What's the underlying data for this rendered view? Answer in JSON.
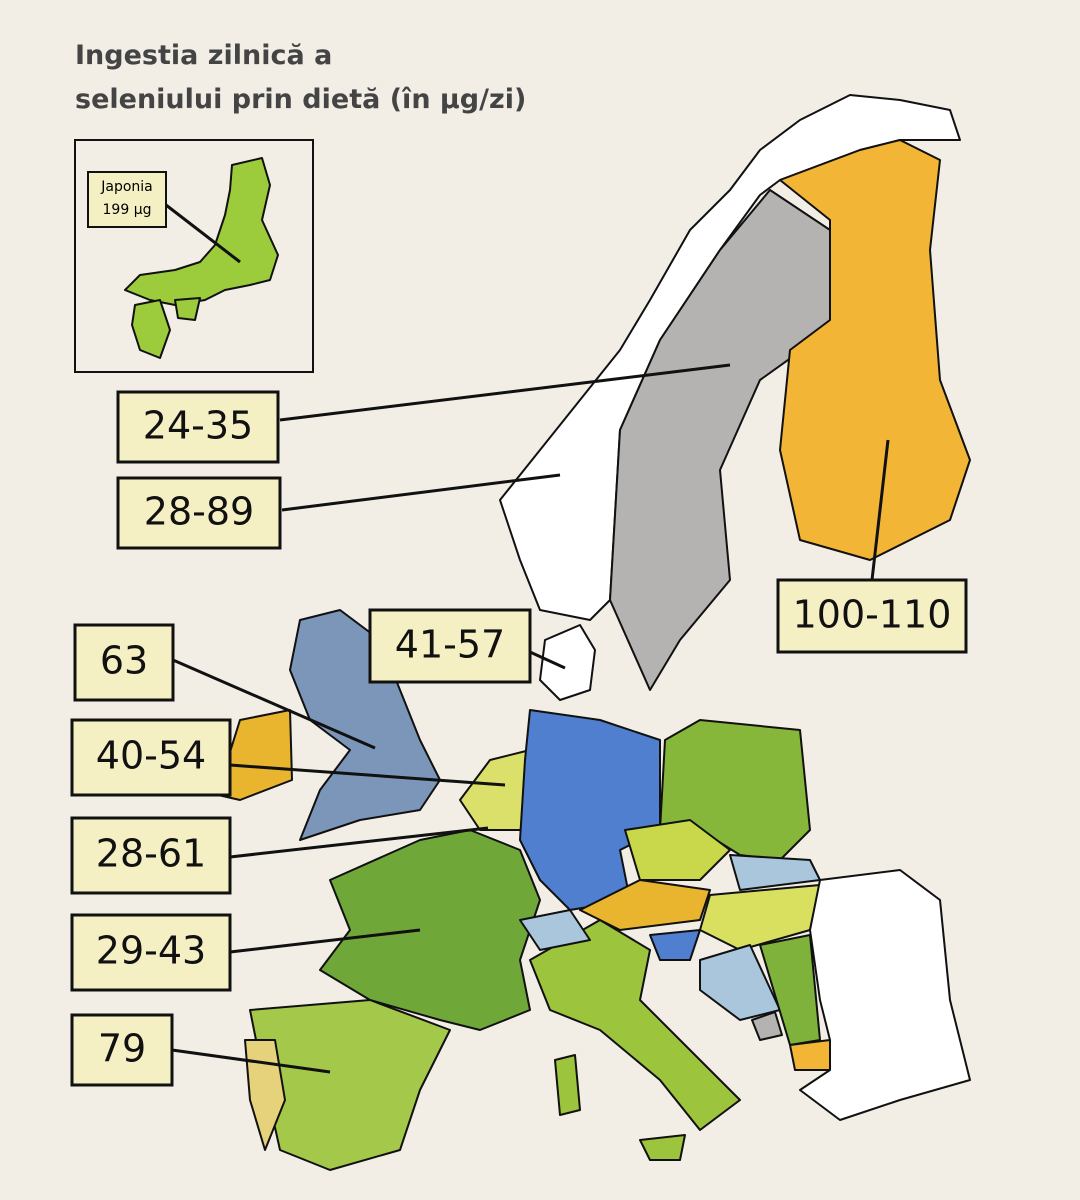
{
  "title": {
    "lines": [
      "Ingestia zilnică a",
      "seleniului prin dietă (în µg/zi)"
    ]
  },
  "inset": {
    "country": "Japonia",
    "value": "199 µg"
  },
  "labels": [
    {
      "text": "24-35"
    },
    {
      "text": "28-89"
    },
    {
      "text": "100-110"
    },
    {
      "text": "41-57"
    },
    {
      "text": "63"
    },
    {
      "text": "40-54"
    },
    {
      "text": "28-61"
    },
    {
      "text": "29-43"
    },
    {
      "text": "79"
    }
  ]
}
